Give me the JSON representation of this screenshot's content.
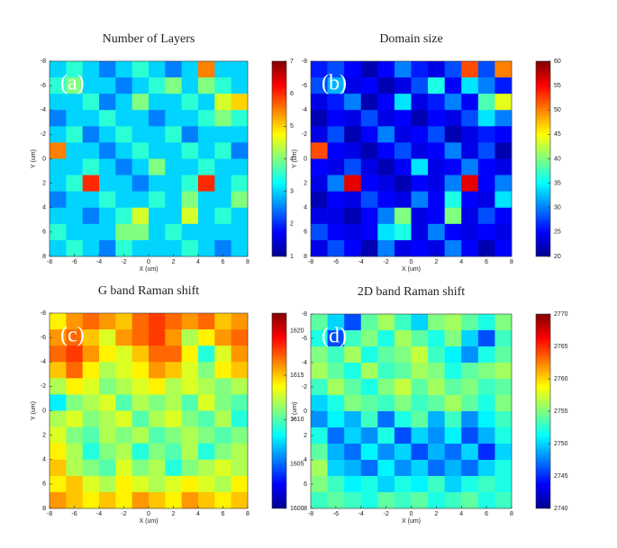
{
  "chart_data": [
    {
      "type": "heatmap",
      "title": "Number of Layers",
      "panel_label": "(a)",
      "xlabel": "X (um)",
      "ylabel": "Y (um)",
      "xlim": [
        -8,
        8
      ],
      "ylim": [
        8,
        -8
      ],
      "xticks": [
        -8,
        -6,
        -4,
        -2,
        0,
        2,
        4,
        6,
        8
      ],
      "yticks": [
        -8,
        -6,
        -4,
        -2,
        0,
        2,
        4,
        6,
        8
      ],
      "clim": [
        1,
        7
      ],
      "cticks": [
        1,
        2,
        3,
        4,
        5,
        6,
        7
      ],
      "colormap": "jet",
      "z": [
        [
          3,
          3.5,
          3,
          2.5,
          3,
          3.5,
          3,
          2.5,
          3,
          5.5,
          3,
          3
        ],
        [
          3.5,
          4,
          3,
          3,
          2.5,
          3,
          3.5,
          4,
          3,
          4,
          3.5,
          3
        ],
        [
          3,
          3,
          3.5,
          2.5,
          3,
          4,
          3,
          3,
          3.5,
          3,
          4.5,
          5
        ],
        [
          2.5,
          3,
          3,
          3.5,
          3,
          3,
          2.5,
          3,
          3,
          3.5,
          4,
          3.5
        ],
        [
          3,
          3.5,
          2.5,
          3,
          3.5,
          3,
          3,
          3.5,
          2.5,
          3,
          3,
          3
        ],
        [
          5.5,
          3,
          3,
          2.5,
          3,
          3.5,
          3,
          3,
          3.5,
          3,
          3.5,
          2.5
        ],
        [
          3,
          3,
          3.5,
          3,
          2.5,
          3,
          4,
          3,
          3,
          3.5,
          3,
          3
        ],
        [
          3,
          3.5,
          6,
          3,
          3,
          2.5,
          3,
          3,
          3.5,
          6,
          3,
          3.5
        ],
        [
          2.5,
          3,
          3,
          3.5,
          3,
          3,
          3.5,
          3,
          4,
          3,
          3,
          4
        ],
        [
          3,
          3,
          2.5,
          3,
          3.5,
          4.5,
          3,
          3,
          4.5,
          3,
          3.5,
          3
        ],
        [
          3.5,
          3,
          3,
          3,
          4,
          4,
          3,
          3.5,
          3,
          3,
          3,
          3
        ],
        [
          3,
          3.5,
          3,
          2.5,
          3.5,
          3,
          3,
          3,
          3.5,
          3,
          2.5,
          3
        ]
      ]
    },
    {
      "type": "heatmap",
      "title": "Domain size",
      "panel_label": "(b)",
      "xlabel": "X (um)",
      "ylabel": "Y (um)",
      "xlim": [
        -8,
        8
      ],
      "ylim": [
        8,
        -8
      ],
      "xticks": [
        -8,
        -6,
        -4,
        -2,
        0,
        2,
        4,
        6,
        8
      ],
      "yticks": [
        -8,
        -6,
        -4,
        -2,
        0,
        2,
        4,
        6,
        8
      ],
      "clim": [
        20,
        60
      ],
      "cticks": [
        20,
        25,
        30,
        35,
        40,
        45,
        50,
        55,
        60
      ],
      "colormap": "jet",
      "z": [
        [
          26,
          28,
          25,
          22,
          25,
          30,
          26,
          24,
          28,
          52,
          28,
          50
        ],
        [
          28,
          32,
          24,
          25,
          22,
          24,
          28,
          36,
          25,
          34,
          30,
          26
        ],
        [
          24,
          26,
          30,
          22,
          25,
          34,
          24,
          26,
          30,
          25,
          38,
          44
        ],
        [
          22,
          25,
          24,
          28,
          24,
          25,
          22,
          25,
          24,
          28,
          34,
          30
        ],
        [
          24,
          28,
          22,
          25,
          30,
          24,
          25,
          28,
          22,
          24,
          26,
          25
        ],
        [
          52,
          25,
          24,
          22,
          25,
          28,
          24,
          25,
          30,
          24,
          28,
          22
        ],
        [
          25,
          24,
          28,
          24,
          22,
          25,
          34,
          24,
          25,
          30,
          25,
          24
        ],
        [
          24,
          30,
          56,
          25,
          24,
          22,
          25,
          24,
          30,
          56,
          25,
          30
        ],
        [
          22,
          25,
          24,
          28,
          25,
          24,
          30,
          25,
          36,
          25,
          24,
          34
        ],
        [
          24,
          24,
          22,
          25,
          30,
          40,
          24,
          25,
          40,
          24,
          28,
          25
        ],
        [
          28,
          25,
          24,
          25,
          34,
          36,
          24,
          30,
          25,
          24,
          25,
          24
        ],
        [
          24,
          28,
          25,
          22,
          30,
          24,
          25,
          24,
          30,
          25,
          22,
          25
        ]
      ]
    },
    {
      "type": "heatmap",
      "title": "G band Raman shift",
      "panel_label": "(c)",
      "xlabel": "X (um)",
      "ylabel": "Y (um)",
      "xlim": [
        -8,
        8
      ],
      "ylim": [
        8,
        -8
      ],
      "xticks": [
        -8,
        -6,
        -4,
        -2,
        0,
        2,
        4,
        6,
        8
      ],
      "yticks": [
        -8,
        -6,
        -4,
        -2,
        0,
        2,
        4,
        6,
        8
      ],
      "clim": [
        1600,
        1622
      ],
      "cticks": [
        1600,
        1605,
        1610,
        1615,
        1620
      ],
      "colormap": "jet",
      "z": [
        [
          1614,
          1616,
          1617,
          1616,
          1615,
          1617,
          1618,
          1617,
          1616,
          1617,
          1615,
          1616
        ],
        [
          1616,
          1617,
          1615,
          1613,
          1616,
          1617,
          1618,
          1616,
          1612,
          1614,
          1616,
          1617
        ],
        [
          1617,
          1618,
          1616,
          1614,
          1613,
          1615,
          1617,
          1617,
          1614,
          1609,
          1613,
          1616
        ],
        [
          1615,
          1617,
          1614,
          1612,
          1613,
          1614,
          1616,
          1615,
          1613,
          1611,
          1614,
          1615
        ],
        [
          1612,
          1614,
          1613,
          1611,
          1612,
          1613,
          1614,
          1612,
          1613,
          1612,
          1611,
          1612
        ],
        [
          1608,
          1611,
          1612,
          1613,
          1610,
          1612,
          1611,
          1612,
          1610,
          1613,
          1611,
          1610
        ],
        [
          1612,
          1613,
          1611,
          1612,
          1613,
          1610,
          1612,
          1613,
          1611,
          1610,
          1612,
          1609
        ],
        [
          1613,
          1611,
          1610,
          1612,
          1611,
          1612,
          1610,
          1611,
          1612,
          1611,
          1610,
          1611
        ],
        [
          1614,
          1612,
          1609,
          1611,
          1612,
          1609,
          1611,
          1610,
          1612,
          1609,
          1611,
          1612
        ],
        [
          1615,
          1612,
          1611,
          1610,
          1613,
          1611,
          1612,
          1609,
          1611,
          1612,
          1613,
          1612
        ],
        [
          1614,
          1615,
          1613,
          1612,
          1614,
          1613,
          1612,
          1613,
          1614,
          1613,
          1612,
          1614
        ],
        [
          1616,
          1615,
          1614,
          1615,
          1614,
          1616,
          1615,
          1614,
          1616,
          1615,
          1614,
          1615
        ]
      ]
    },
    {
      "type": "heatmap",
      "title": "2D band Raman shift",
      "panel_label": "(d)",
      "xlabel": "X (um)",
      "ylabel": "Y (um)",
      "xlim": [
        -8,
        8
      ],
      "ylim": [
        8,
        -8
      ],
      "xticks": [
        -8,
        -6,
        -4,
        -2,
        0,
        2,
        4,
        6,
        8
      ],
      "yticks": [
        -8,
        -6,
        -4,
        -2,
        0,
        2,
        4,
        6,
        8
      ],
      "clim": [
        2740,
        2770
      ],
      "cticks": [
        2740,
        2745,
        2750,
        2755,
        2760,
        2765,
        2770
      ],
      "colormap": "jet",
      "z": [
        [
          2754,
          2750,
          2746,
          2754,
          2756,
          2753,
          2750,
          2755,
          2756,
          2754,
          2752,
          2755
        ],
        [
          2752,
          2746,
          2753,
          2755,
          2752,
          2756,
          2754,
          2752,
          2755,
          2750,
          2746,
          2753
        ],
        [
          2755,
          2753,
          2756,
          2752,
          2754,
          2755,
          2757,
          2753,
          2751,
          2748,
          2752,
          2754
        ],
        [
          2756,
          2754,
          2752,
          2756,
          2753,
          2754,
          2756,
          2755,
          2752,
          2754,
          2755,
          2756
        ],
        [
          2753,
          2756,
          2754,
          2752,
          2755,
          2757,
          2754,
          2756,
          2754,
          2755,
          2753,
          2754
        ],
        [
          2750,
          2752,
          2755,
          2754,
          2753,
          2755,
          2753,
          2754,
          2756,
          2754,
          2752,
          2755
        ],
        [
          2748,
          2751,
          2749,
          2753,
          2747,
          2752,
          2754,
          2749,
          2753,
          2748,
          2751,
          2753
        ],
        [
          2752,
          2747,
          2750,
          2748,
          2752,
          2746,
          2750,
          2748,
          2751,
          2746,
          2749,
          2752
        ],
        [
          2754,
          2749,
          2747,
          2751,
          2748,
          2750,
          2746,
          2749,
          2747,
          2750,
          2745,
          2750
        ],
        [
          2756,
          2750,
          2749,
          2747,
          2751,
          2748,
          2750,
          2747,
          2749,
          2747,
          2750,
          2752
        ],
        [
          2755,
          2753,
          2751,
          2752,
          2750,
          2752,
          2751,
          2753,
          2750,
          2752,
          2753,
          2752
        ],
        [
          2753,
          2754,
          2753,
          2752,
          2754,
          2753,
          2754,
          2752,
          2753,
          2754,
          2752,
          2753
        ]
      ]
    }
  ]
}
